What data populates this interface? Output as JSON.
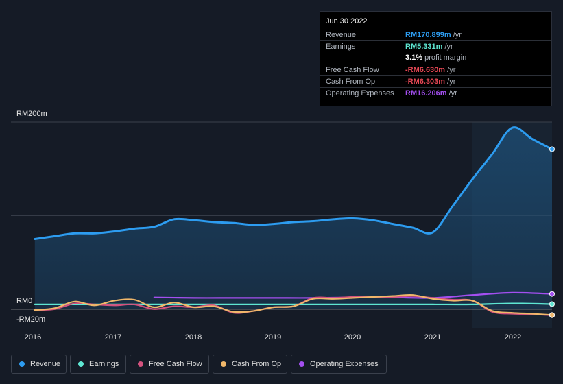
{
  "tooltip": {
    "date": "Jun 30 2022",
    "rows": [
      {
        "label": "Revenue",
        "value": "RM170.899m",
        "unit": " /yr",
        "color": "#2d9cf0"
      },
      {
        "label": "Earnings",
        "value": "RM5.331m",
        "unit": " /yr",
        "color": "#5ee6d2"
      },
      {
        "label": "",
        "value": "3.1%",
        "unit": " profit margin",
        "color": "#ffffff"
      },
      {
        "label": "Free Cash Flow",
        "value": "-RM6.630m",
        "unit": " /yr",
        "color": "#e84855"
      },
      {
        "label": "Cash From Op",
        "value": "-RM6.303m",
        "unit": " /yr",
        "color": "#e84855"
      },
      {
        "label": "Operating Expenses",
        "value": "RM16.206m",
        "unit": " /yr",
        "color": "#a34ff0"
      }
    ]
  },
  "legend": [
    {
      "label": "Revenue",
      "color": "#2d9cf0"
    },
    {
      "label": "Earnings",
      "color": "#5ee6d2"
    },
    {
      "label": "Free Cash Flow",
      "color": "#d4527e"
    },
    {
      "label": "Cash From Op",
      "color": "#f0b76a"
    },
    {
      "label": "Operating Expenses",
      "color": "#a34ff0"
    }
  ],
  "chart_data": {
    "type": "area",
    "title": "",
    "xlabel": "",
    "ylabel": "",
    "y_tick_labels": [
      "RM200m",
      "RM0",
      "-RM20m"
    ],
    "x_tick_labels": [
      "2016",
      "2017",
      "2018",
      "2019",
      "2020",
      "2021",
      "2022"
    ],
    "ylim": [
      -20,
      200
    ],
    "xlim": [
      2015.7,
      2022.5
    ],
    "grid": true,
    "legend_position": "bottom",
    "highlight_start": 2021.5,
    "series": [
      {
        "name": "Revenue",
        "color": "#2d9cf0",
        "fill": true,
        "points": [
          [
            2016.0,
            75
          ],
          [
            2016.25,
            78
          ],
          [
            2016.5,
            81
          ],
          [
            2016.75,
            81
          ],
          [
            2017.0,
            83
          ],
          [
            2017.25,
            86
          ],
          [
            2017.5,
            88
          ],
          [
            2017.75,
            96
          ],
          [
            2018.0,
            95
          ],
          [
            2018.25,
            93
          ],
          [
            2018.5,
            92
          ],
          [
            2018.75,
            90
          ],
          [
            2019.0,
            91
          ],
          [
            2019.25,
            93
          ],
          [
            2019.5,
            94
          ],
          [
            2019.75,
            96
          ],
          [
            2020.0,
            97
          ],
          [
            2020.25,
            95
          ],
          [
            2020.5,
            91
          ],
          [
            2020.75,
            87
          ],
          [
            2021.0,
            82
          ],
          [
            2021.25,
            110
          ],
          [
            2021.5,
            139
          ],
          [
            2021.75,
            166
          ],
          [
            2022.0,
            194
          ],
          [
            2022.25,
            182
          ],
          [
            2022.5,
            171
          ]
        ]
      },
      {
        "name": "Earnings",
        "color": "#5ee6d2",
        "fill": false,
        "points": [
          [
            2016.0,
            5
          ],
          [
            2016.5,
            5
          ],
          [
            2017.0,
            5
          ],
          [
            2017.5,
            5
          ],
          [
            2018.0,
            5
          ],
          [
            2018.5,
            5
          ],
          [
            2019.0,
            5
          ],
          [
            2019.5,
            5
          ],
          [
            2020.0,
            5
          ],
          [
            2020.5,
            5
          ],
          [
            2021.0,
            5
          ],
          [
            2021.5,
            5
          ],
          [
            2022.0,
            6
          ],
          [
            2022.5,
            5.3
          ]
        ]
      },
      {
        "name": "Free Cash Flow",
        "color": "#d4527e",
        "fill": false,
        "points": [
          [
            2016.0,
            -1
          ],
          [
            2016.25,
            0
          ],
          [
            2016.5,
            6
          ],
          [
            2016.75,
            5
          ],
          [
            2017.0,
            4
          ],
          [
            2017.25,
            5
          ],
          [
            2017.5,
            0
          ],
          [
            2017.75,
            3
          ],
          [
            2018.0,
            2
          ],
          [
            2018.25,
            4
          ],
          [
            2018.5,
            -4
          ],
          [
            2018.75,
            -2
          ],
          [
            2019.0,
            2
          ],
          [
            2019.25,
            3
          ],
          [
            2019.5,
            12
          ],
          [
            2019.75,
            12
          ],
          [
            2020.0,
            13
          ],
          [
            2020.25,
            13
          ],
          [
            2020.5,
            13
          ],
          [
            2020.75,
            14
          ],
          [
            2021.0,
            12
          ],
          [
            2021.25,
            10
          ],
          [
            2021.5,
            9
          ],
          [
            2021.75,
            -3
          ],
          [
            2022.0,
            -5
          ],
          [
            2022.25,
            -5.5
          ],
          [
            2022.5,
            -6.6
          ]
        ]
      },
      {
        "name": "Cash From Op",
        "color": "#f0b76a",
        "fill": false,
        "points": [
          [
            2016.0,
            -1
          ],
          [
            2016.25,
            1
          ],
          [
            2016.5,
            8
          ],
          [
            2016.75,
            4
          ],
          [
            2017.0,
            9
          ],
          [
            2017.25,
            10
          ],
          [
            2017.5,
            2
          ],
          [
            2017.75,
            7
          ],
          [
            2018.0,
            2
          ],
          [
            2018.25,
            3
          ],
          [
            2018.5,
            -3
          ],
          [
            2018.75,
            -2
          ],
          [
            2019.0,
            2
          ],
          [
            2019.25,
            3
          ],
          [
            2019.5,
            11
          ],
          [
            2019.75,
            11
          ],
          [
            2020.0,
            12
          ],
          [
            2020.25,
            13
          ],
          [
            2020.5,
            14
          ],
          [
            2020.75,
            15
          ],
          [
            2021.0,
            11
          ],
          [
            2021.25,
            9
          ],
          [
            2021.5,
            9
          ],
          [
            2021.75,
            -2
          ],
          [
            2022.0,
            -4
          ],
          [
            2022.25,
            -5
          ],
          [
            2022.5,
            -6.3
          ]
        ]
      },
      {
        "name": "Operating Expenses",
        "color": "#a34ff0",
        "fill": false,
        "points": [
          [
            2017.5,
            12.5
          ],
          [
            2018.0,
            12
          ],
          [
            2018.5,
            12
          ],
          [
            2019.0,
            12
          ],
          [
            2019.5,
            12
          ],
          [
            2020.0,
            12.5
          ],
          [
            2020.5,
            12.5
          ],
          [
            2021.0,
            12
          ],
          [
            2021.5,
            15
          ],
          [
            2022.0,
            17.5
          ],
          [
            2022.5,
            16.2
          ]
        ]
      }
    ]
  }
}
